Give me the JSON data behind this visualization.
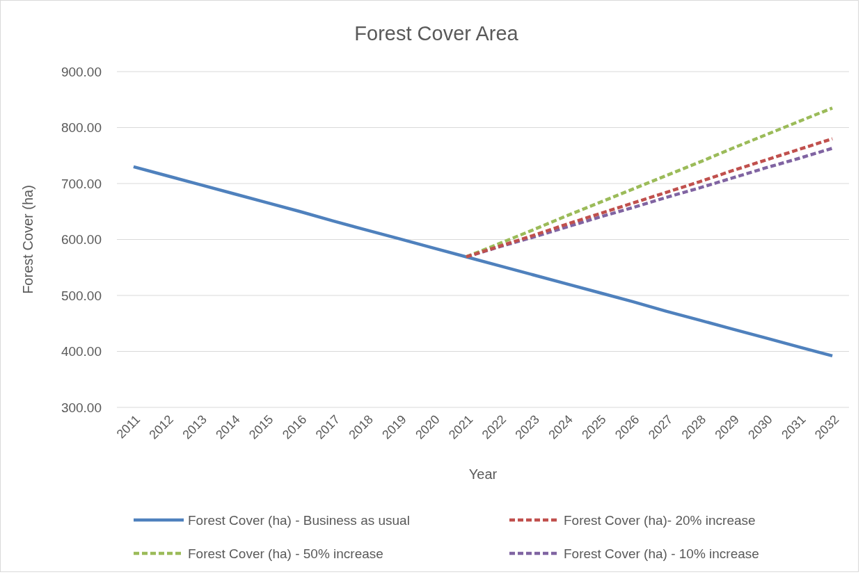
{
  "chart_data": {
    "type": "line",
    "title": "Forest Cover Area",
    "xlabel": "Year",
    "ylabel": "Forest Cover (ha)",
    "categories": [
      "2011",
      "2012",
      "2013",
      "2014",
      "2015",
      "2016",
      "2017",
      "2018",
      "2019",
      "2020",
      "2021",
      "2022",
      "2023",
      "2024",
      "2025",
      "2026",
      "2027",
      "2028",
      "2029",
      "2030",
      "2031",
      "2032"
    ],
    "ylim": [
      300,
      900
    ],
    "yticks": [
      {
        "value": 300,
        "label": "300.00"
      },
      {
        "value": 400,
        "label": "400.00"
      },
      {
        "value": 500,
        "label": "500.00"
      },
      {
        "value": 600,
        "label": "600.00"
      },
      {
        "value": 700,
        "label": "700.00"
      },
      {
        "value": 800,
        "label": "800.00"
      },
      {
        "value": 900,
        "label": "900.00"
      }
    ],
    "grid": "y",
    "legend": "bottom",
    "marker": "none",
    "series": [
      {
        "name": "Forest Cover (ha) - Business as usual",
        "color": "#4f81bd",
        "line_style": "solid",
        "values": [
          730,
          714,
          698,
          682,
          666,
          650,
          633,
          617,
          601,
          585,
          569,
          553,
          537,
          521,
          505,
          489,
          472,
          456,
          440,
          424,
          408,
          392
        ]
      },
      {
        "name": "Forest Cover (ha)- 20% increase",
        "color": "#c0504d",
        "line_style": "dashed",
        "values": [
          null,
          null,
          null,
          null,
          null,
          null,
          null,
          null,
          null,
          null,
          569,
          588,
          607,
          627,
          646,
          665,
          684,
          703,
          723,
          742,
          761,
          780
        ]
      },
      {
        "name": "Forest Cover (ha) - 50% increase",
        "color": "#9bbb59",
        "line_style": "dashed",
        "values": [
          null,
          null,
          null,
          null,
          null,
          null,
          null,
          null,
          null,
          null,
          569,
          593,
          617,
          642,
          666,
          690,
          714,
          738,
          763,
          787,
          811,
          835
        ]
      },
      {
        "name": "Forest Cover (ha) - 10% increase",
        "color": "#8064a2",
        "line_style": "dashed",
        "values": [
          null,
          null,
          null,
          null,
          null,
          null,
          null,
          null,
          null,
          null,
          569,
          587,
          604,
          622,
          640,
          657,
          675,
          692,
          710,
          728,
          745,
          763
        ]
      }
    ]
  }
}
